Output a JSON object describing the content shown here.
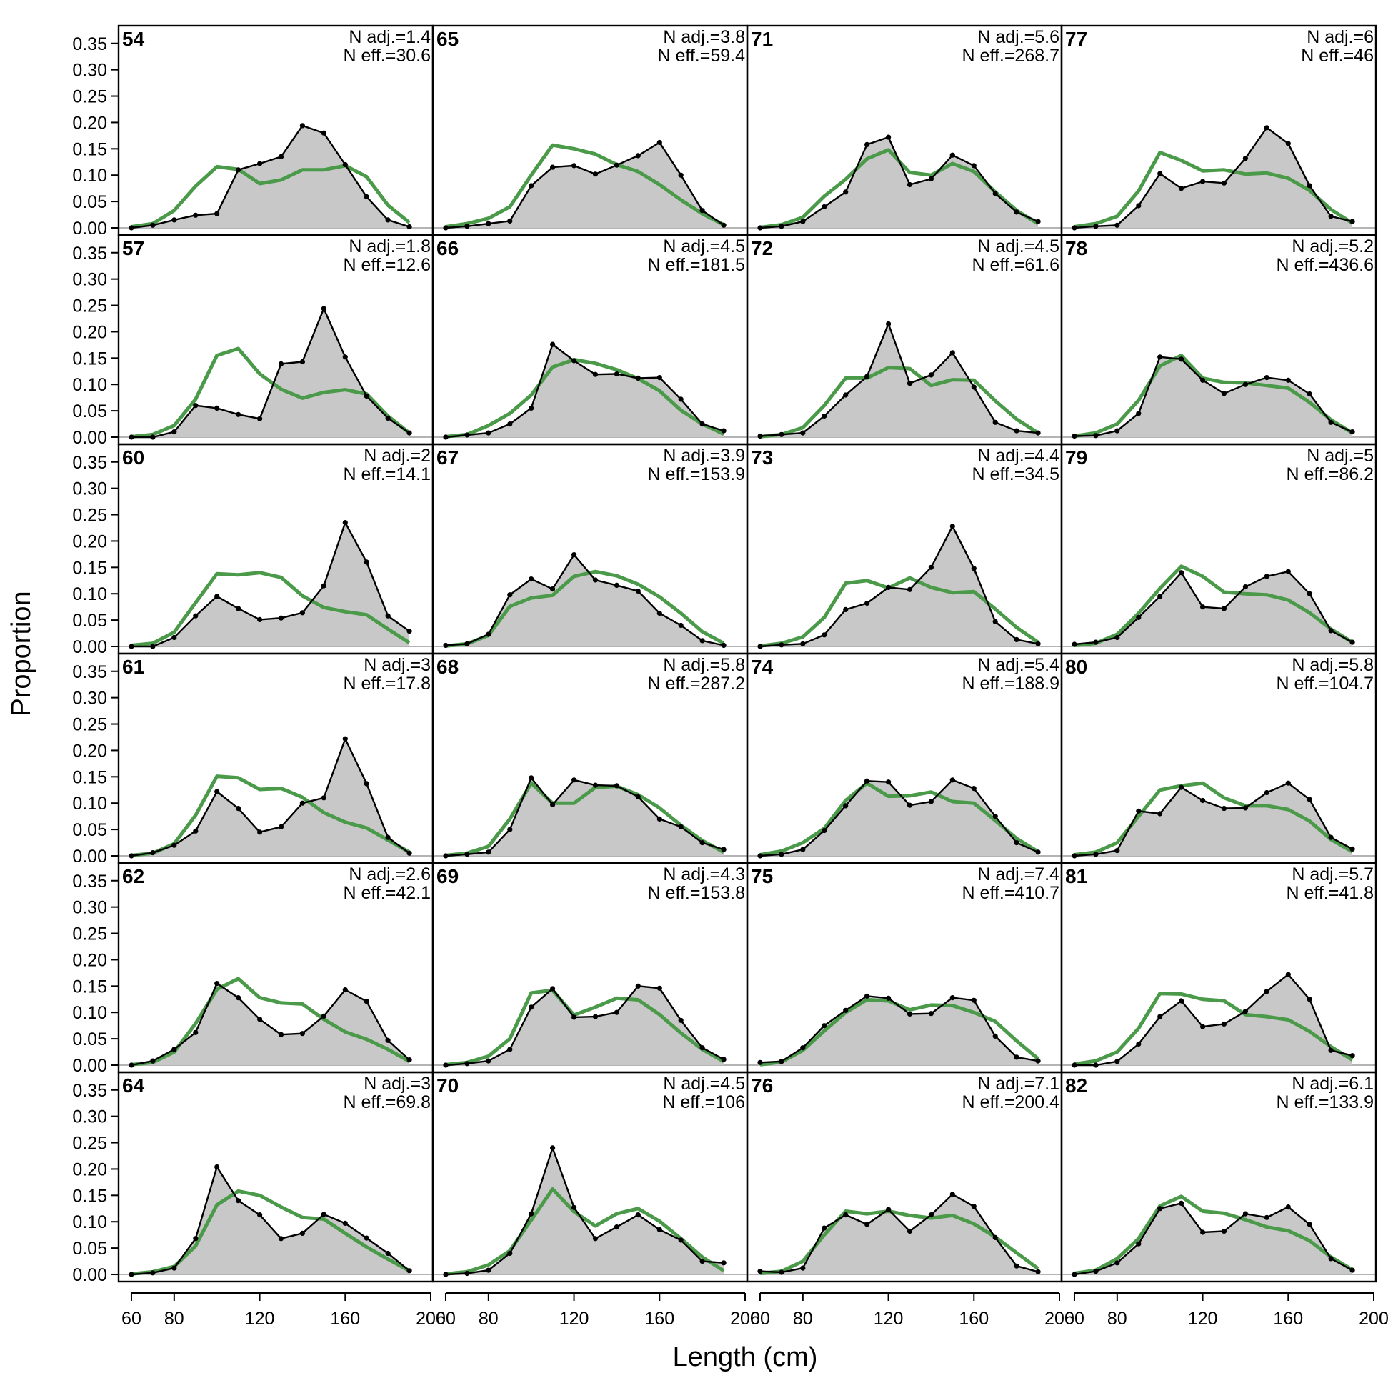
{
  "chart_data": {
    "type": "line",
    "layout": "6 rows x 4 columns of panels, filled column-wise",
    "xlabel": "Length (cm)",
    "ylabel": "Proportion",
    "xlim": [
      54,
      201
    ],
    "ylim": [
      0,
      0.37
    ],
    "x_ticks": [
      60,
      80,
      120,
      160,
      200
    ],
    "y_ticks": [
      "0.00",
      "0.05",
      "0.10",
      "0.15",
      "0.20",
      "0.25",
      "0.30",
      "0.35"
    ],
    "x": [
      60,
      70,
      80,
      90,
      100,
      110,
      120,
      130,
      140,
      150,
      160,
      170,
      180,
      190
    ],
    "colors": {
      "observed_fill": "#c8c8c8",
      "observed_line": "#000000",
      "expected_line": "#4a9a4a"
    },
    "panels": [
      {
        "label": "54",
        "n_adj": "N adj.=1.4",
        "n_eff": "N eff.=30.6",
        "observed": [
          0.0,
          0.005,
          0.015,
          0.024,
          0.027,
          0.11,
          0.122,
          0.135,
          0.194,
          0.18,
          0.12,
          0.059,
          0.015,
          0.002
        ],
        "expected": [
          0.002,
          0.008,
          0.033,
          0.079,
          0.116,
          0.111,
          0.084,
          0.091,
          0.11,
          0.11,
          0.118,
          0.097,
          0.043,
          0.01
        ]
      },
      {
        "label": "57",
        "n_adj": "N adj.=1.8",
        "n_eff": "N eff.=12.6",
        "observed": [
          0.0,
          0.0,
          0.01,
          0.06,
          0.055,
          0.043,
          0.035,
          0.139,
          0.143,
          0.244,
          0.152,
          0.078,
          0.036,
          0.008
        ],
        "expected": [
          0.001,
          0.005,
          0.022,
          0.072,
          0.155,
          0.168,
          0.12,
          0.091,
          0.074,
          0.085,
          0.09,
          0.082,
          0.04,
          0.008
        ]
      },
      {
        "label": "60",
        "n_adj": "N adj.=2",
        "n_eff": "N eff.=14.1",
        "observed": [
          0.0,
          0.0,
          0.017,
          0.058,
          0.095,
          0.072,
          0.051,
          0.054,
          0.064,
          0.115,
          0.235,
          0.16,
          0.058,
          0.029
        ],
        "expected": [
          0.002,
          0.006,
          0.027,
          0.083,
          0.138,
          0.136,
          0.14,
          0.131,
          0.096,
          0.074,
          0.066,
          0.06,
          0.033,
          0.007
        ]
      },
      {
        "label": "61",
        "n_adj": "N adj.=3",
        "n_eff": "N eff.=17.8",
        "observed": [
          0.0,
          0.006,
          0.02,
          0.047,
          0.122,
          0.09,
          0.045,
          0.055,
          0.1,
          0.11,
          0.222,
          0.137,
          0.035,
          0.005
        ],
        "expected": [
          0.001,
          0.005,
          0.023,
          0.077,
          0.151,
          0.148,
          0.126,
          0.128,
          0.111,
          0.082,
          0.064,
          0.053,
          0.03,
          0.007
        ]
      },
      {
        "label": "62",
        "n_adj": "N adj.=2.6",
        "n_eff": "N eff.=42.1",
        "observed": [
          0.0,
          0.008,
          0.03,
          0.062,
          0.155,
          0.128,
          0.087,
          0.058,
          0.06,
          0.093,
          0.143,
          0.121,
          0.047,
          0.01
        ],
        "expected": [
          0.001,
          0.005,
          0.025,
          0.079,
          0.144,
          0.164,
          0.128,
          0.118,
          0.116,
          0.087,
          0.063,
          0.049,
          0.03,
          0.007
        ]
      },
      {
        "label": "64",
        "n_adj": "N adj.=3",
        "n_eff": "N eff.=69.8",
        "observed": [
          0.0,
          0.003,
          0.012,
          0.068,
          0.204,
          0.14,
          0.113,
          0.068,
          0.078,
          0.114,
          0.097,
          0.069,
          0.04,
          0.007
        ],
        "expected": [
          0.001,
          0.005,
          0.015,
          0.054,
          0.132,
          0.158,
          0.15,
          0.128,
          0.108,
          0.105,
          0.078,
          0.052,
          0.029,
          0.007
        ]
      },
      {
        "label": "65",
        "n_adj": "N adj.=3.8",
        "n_eff": "N eff.=59.4",
        "observed": [
          0.0,
          0.003,
          0.008,
          0.013,
          0.08,
          0.115,
          0.118,
          0.102,
          0.119,
          0.137,
          0.162,
          0.1,
          0.033,
          0.005
        ],
        "expected": [
          0.002,
          0.008,
          0.018,
          0.04,
          0.1,
          0.157,
          0.15,
          0.14,
          0.12,
          0.107,
          0.082,
          0.053,
          0.027,
          0.006
        ]
      },
      {
        "label": "66",
        "n_adj": "N adj.=4.5",
        "n_eff": "N eff.=181.5",
        "observed": [
          0.0,
          0.004,
          0.008,
          0.025,
          0.055,
          0.176,
          0.145,
          0.119,
          0.12,
          0.112,
          0.113,
          0.072,
          0.025,
          0.012
        ],
        "expected": [
          0.001,
          0.005,
          0.022,
          0.045,
          0.08,
          0.133,
          0.147,
          0.14,
          0.128,
          0.111,
          0.088,
          0.051,
          0.025,
          0.006
        ]
      },
      {
        "label": "67",
        "n_adj": "N adj.=3.9",
        "n_eff": "N eff.=153.9",
        "observed": [
          0.002,
          0.005,
          0.023,
          0.098,
          0.128,
          0.109,
          0.174,
          0.126,
          0.116,
          0.105,
          0.063,
          0.04,
          0.011,
          0.002
        ],
        "expected": [
          0.001,
          0.005,
          0.021,
          0.076,
          0.092,
          0.097,
          0.133,
          0.142,
          0.134,
          0.118,
          0.094,
          0.063,
          0.028,
          0.006
        ]
      },
      {
        "label": "68",
        "n_adj": "N adj.=5.8",
        "n_eff": "N eff.=287.2",
        "observed": [
          0.0,
          0.003,
          0.007,
          0.05,
          0.148,
          0.097,
          0.144,
          0.134,
          0.133,
          0.112,
          0.07,
          0.055,
          0.025,
          0.012
        ],
        "expected": [
          0.001,
          0.005,
          0.018,
          0.07,
          0.138,
          0.1,
          0.1,
          0.13,
          0.132,
          0.116,
          0.091,
          0.058,
          0.029,
          0.007
        ]
      },
      {
        "label": "69",
        "n_adj": "N adj.=4.3",
        "n_eff": "N eff.=153.8",
        "observed": [
          0.0,
          0.003,
          0.008,
          0.03,
          0.11,
          0.145,
          0.091,
          0.092,
          0.1,
          0.15,
          0.146,
          0.085,
          0.033,
          0.011
        ],
        "expected": [
          0.001,
          0.005,
          0.017,
          0.05,
          0.137,
          0.142,
          0.095,
          0.11,
          0.127,
          0.124,
          0.096,
          0.061,
          0.03,
          0.007
        ]
      },
      {
        "label": "70",
        "n_adj": "N adj.=4.5",
        "n_eff": "N eff.=106",
        "observed": [
          0.0,
          0.002,
          0.008,
          0.04,
          0.115,
          0.24,
          0.127,
          0.068,
          0.09,
          0.113,
          0.085,
          0.065,
          0.025,
          0.022
        ],
        "expected": [
          0.001,
          0.005,
          0.018,
          0.045,
          0.103,
          0.162,
          0.119,
          0.092,
          0.115,
          0.125,
          0.101,
          0.068,
          0.033,
          0.007
        ]
      },
      {
        "label": "71",
        "n_adj": "N adj.=5.6",
        "n_eff": "N eff.=268.7",
        "observed": [
          0.0,
          0.003,
          0.012,
          0.04,
          0.068,
          0.158,
          0.172,
          0.082,
          0.093,
          0.138,
          0.118,
          0.065,
          0.03,
          0.012
        ],
        "expected": [
          0.001,
          0.006,
          0.02,
          0.06,
          0.092,
          0.131,
          0.148,
          0.105,
          0.1,
          0.122,
          0.107,
          0.068,
          0.033,
          0.008
        ]
      },
      {
        "label": "72",
        "n_adj": "N adj.=4.5",
        "n_eff": "N eff.=61.6",
        "observed": [
          0.002,
          0.005,
          0.008,
          0.04,
          0.08,
          0.115,
          0.215,
          0.102,
          0.118,
          0.16,
          0.095,
          0.028,
          0.012,
          0.008
        ],
        "expected": [
          0.001,
          0.005,
          0.018,
          0.06,
          0.112,
          0.112,
          0.132,
          0.13,
          0.098,
          0.109,
          0.108,
          0.069,
          0.034,
          0.008
        ]
      },
      {
        "label": "73",
        "n_adj": "N adj.=4.4",
        "n_eff": "N eff.=34.5",
        "observed": [
          0.0,
          0.003,
          0.005,
          0.022,
          0.07,
          0.082,
          0.112,
          0.108,
          0.15,
          0.228,
          0.148,
          0.047,
          0.013,
          0.005
        ],
        "expected": [
          0.001,
          0.006,
          0.018,
          0.055,
          0.12,
          0.125,
          0.111,
          0.13,
          0.112,
          0.102,
          0.104,
          0.071,
          0.036,
          0.008
        ]
      },
      {
        "label": "74",
        "n_adj": "N adj.=5.4",
        "n_eff": "N eff.=188.9",
        "observed": [
          0.0,
          0.003,
          0.012,
          0.048,
          0.095,
          0.142,
          0.14,
          0.096,
          0.103,
          0.144,
          0.128,
          0.075,
          0.025,
          0.007
        ],
        "expected": [
          0.002,
          0.009,
          0.025,
          0.052,
          0.105,
          0.138,
          0.113,
          0.114,
          0.121,
          0.103,
          0.1,
          0.067,
          0.033,
          0.008
        ]
      },
      {
        "label": "75",
        "n_adj": "N adj.=7.4",
        "n_eff": "N eff.=410.7",
        "observed": [
          0.005,
          0.007,
          0.033,
          0.075,
          0.104,
          0.131,
          0.127,
          0.097,
          0.098,
          0.128,
          0.123,
          0.055,
          0.015,
          0.008
        ],
        "expected": [
          0.001,
          0.006,
          0.028,
          0.065,
          0.1,
          0.124,
          0.122,
          0.105,
          0.114,
          0.113,
          0.1,
          0.083,
          0.046,
          0.012
        ]
      },
      {
        "label": "76",
        "n_adj": "N adj.=7.1",
        "n_eff": "N eff.=200.4",
        "observed": [
          0.006,
          0.004,
          0.012,
          0.088,
          0.113,
          0.095,
          0.123,
          0.082,
          0.113,
          0.152,
          0.129,
          0.07,
          0.016,
          0.005
        ],
        "expected": [
          0.002,
          0.006,
          0.025,
          0.075,
          0.12,
          0.115,
          0.12,
          0.112,
          0.107,
          0.112,
          0.096,
          0.071,
          0.041,
          0.011
        ]
      },
      {
        "label": "77",
        "n_adj": "N adj.=6",
        "n_eff": "N eff.=46",
        "observed": [
          0.0,
          0.003,
          0.005,
          0.042,
          0.103,
          0.075,
          0.088,
          0.085,
          0.132,
          0.19,
          0.16,
          0.08,
          0.022,
          0.012
        ],
        "expected": [
          0.002,
          0.008,
          0.022,
          0.07,
          0.143,
          0.128,
          0.108,
          0.11,
          0.102,
          0.104,
          0.094,
          0.071,
          0.035,
          0.009
        ]
      },
      {
        "label": "78",
        "n_adj": "N adj.=5.2",
        "n_eff": "N eff.=436.6",
        "observed": [
          0.002,
          0.003,
          0.012,
          0.045,
          0.152,
          0.148,
          0.108,
          0.083,
          0.1,
          0.113,
          0.108,
          0.082,
          0.028,
          0.01
        ],
        "expected": [
          0.002,
          0.008,
          0.025,
          0.07,
          0.135,
          0.155,
          0.112,
          0.104,
          0.103,
          0.098,
          0.093,
          0.066,
          0.033,
          0.008
        ]
      },
      {
        "label": "79",
        "n_adj": "N adj.=5",
        "n_eff": "N eff.=86.2",
        "observed": [
          0.004,
          0.008,
          0.017,
          0.055,
          0.095,
          0.14,
          0.075,
          0.072,
          0.113,
          0.133,
          0.142,
          0.1,
          0.03,
          0.008
        ],
        "expected": [
          0.002,
          0.006,
          0.023,
          0.063,
          0.11,
          0.152,
          0.133,
          0.103,
          0.1,
          0.098,
          0.088,
          0.064,
          0.033,
          0.008
        ]
      },
      {
        "label": "80",
        "n_adj": "N adj.=5.8",
        "n_eff": "N eff.=104.7",
        "observed": [
          0.0,
          0.003,
          0.01,
          0.085,
          0.08,
          0.13,
          0.105,
          0.09,
          0.091,
          0.12,
          0.138,
          0.107,
          0.035,
          0.013
        ],
        "expected": [
          0.002,
          0.007,
          0.025,
          0.075,
          0.125,
          0.133,
          0.138,
          0.11,
          0.095,
          0.095,
          0.088,
          0.066,
          0.031,
          0.008
        ]
      },
      {
        "label": "81",
        "n_adj": "N adj.=5.7",
        "n_eff": "N eff.=41.8",
        "observed": [
          0.0,
          0.0,
          0.007,
          0.04,
          0.092,
          0.122,
          0.073,
          0.078,
          0.102,
          0.14,
          0.172,
          0.125,
          0.028,
          0.018
        ],
        "expected": [
          0.002,
          0.008,
          0.025,
          0.07,
          0.136,
          0.135,
          0.125,
          0.122,
          0.096,
          0.092,
          0.086,
          0.064,
          0.035,
          0.01
        ]
      },
      {
        "label": "82",
        "n_adj": "N adj.=6.1",
        "n_eff": "N eff.=133.9",
        "observed": [
          0.0,
          0.006,
          0.022,
          0.058,
          0.125,
          0.135,
          0.08,
          0.082,
          0.115,
          0.108,
          0.128,
          0.095,
          0.03,
          0.008
        ],
        "expected": [
          0.002,
          0.008,
          0.03,
          0.068,
          0.13,
          0.148,
          0.12,
          0.116,
          0.104,
          0.09,
          0.083,
          0.064,
          0.033,
          0.009
        ]
      }
    ]
  }
}
